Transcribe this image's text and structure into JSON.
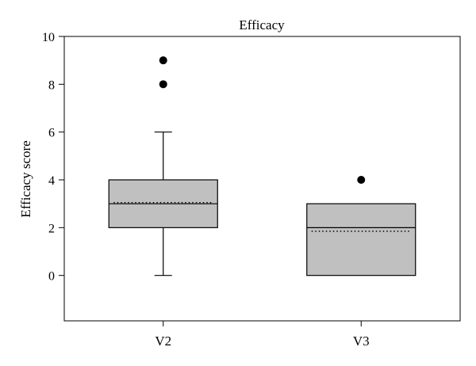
{
  "chart_data": {
    "type": "box",
    "title": "Efficacy",
    "xlabel": "",
    "ylabel": "Efficacy score",
    "ylim": [
      -1.9,
      10
    ],
    "yticks": [
      0,
      2,
      4,
      6,
      8,
      10
    ],
    "grid": false,
    "categories": [
      "V2",
      "V3"
    ],
    "boxes": [
      {
        "category": "V2",
        "q1": 2,
        "median": 3,
        "q3": 4,
        "mean": 3.05,
        "whisker_low": 0,
        "whisker_high": 6,
        "outliers": [
          8,
          9
        ]
      },
      {
        "category": "V3",
        "q1": 0,
        "median": 2,
        "q3": 3,
        "mean": 1.85,
        "whisker_low": 0,
        "whisker_high": 3,
        "outliers": [
          4
        ]
      }
    ],
    "colors": {
      "box_fill": "#c0c0c0",
      "stroke": "#000000",
      "outlier": "#000000"
    }
  }
}
